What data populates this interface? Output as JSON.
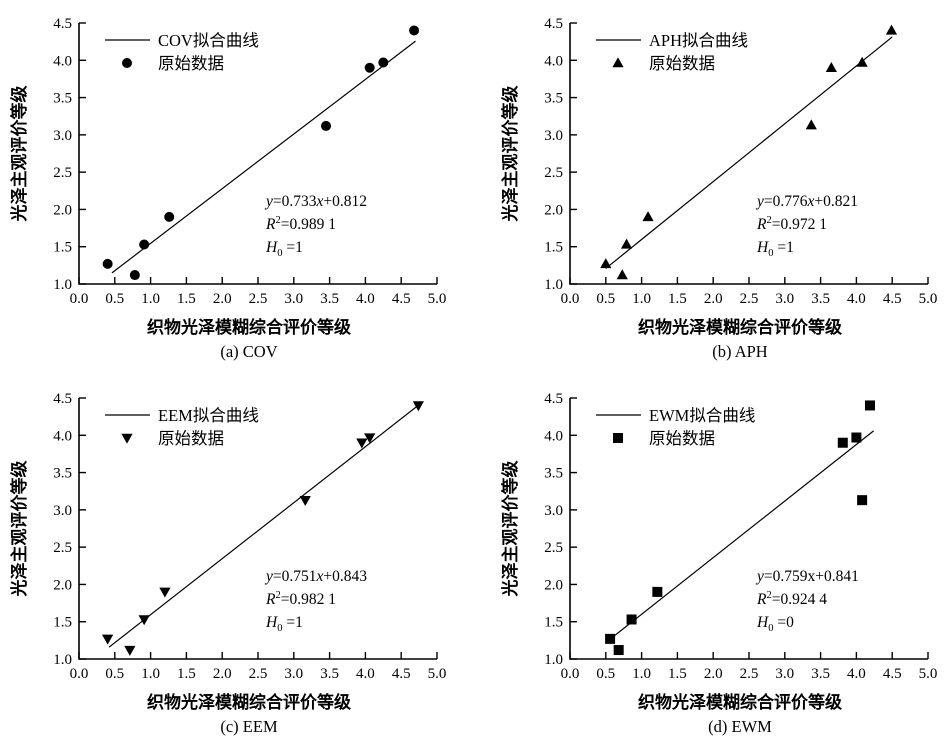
{
  "figure": {
    "background": "#ffffff",
    "ink_color": "#000000"
  },
  "chart_data": [
    {
      "id": "a",
      "type": "scatter",
      "caption": "(a) COV",
      "xlabel": "织物光泽模糊综合评价等级",
      "ylabel": "光泽主观评价等级",
      "xlim": [
        0.0,
        5.0
      ],
      "ylim": [
        1.0,
        4.5
      ],
      "xticks": [
        "0.0",
        "0.5",
        "1.0",
        "1.5",
        "2.0",
        "2.5",
        "3.0",
        "3.5",
        "4.0",
        "4.5",
        "5.0"
      ],
      "yticks": [
        "1.0",
        "1.5",
        "2.0",
        "2.5",
        "3.0",
        "3.5",
        "4.0",
        "4.5"
      ],
      "grid": false,
      "legend": {
        "position": "top-left",
        "line_label": "COV拟合曲线",
        "marker_label": "原始数据"
      },
      "marker": "circle",
      "fit_line": {
        "slope": 0.733,
        "intercept": 0.812,
        "x_start": 0.46,
        "x_end": 4.7
      },
      "equation": {
        "lhs": "y",
        "mid": "=0.733",
        "xvar": "x",
        "x_italic": true,
        "rhs": "+0.812",
        "r2_base": "R",
        "r2_sup": "2",
        "r2_value": "=0.989 1",
        "h_base": "H",
        "h_sub": "0",
        "h_value": " =1"
      },
      "points": [
        [
          0.4,
          1.27
        ],
        [
          0.78,
          1.12
        ],
        [
          0.91,
          1.53
        ],
        [
          1.26,
          1.9
        ],
        [
          3.45,
          3.12
        ],
        [
          4.06,
          3.9
        ],
        [
          4.25,
          3.97
        ],
        [
          4.68,
          4.4
        ]
      ]
    },
    {
      "id": "b",
      "type": "scatter",
      "caption": "(b) APH",
      "xlabel": "织物光泽模糊综合评价等级",
      "ylabel": "光泽主观评价等级",
      "xlim": [
        0.0,
        5.0
      ],
      "ylim": [
        1.0,
        4.5
      ],
      "xticks": [
        "0.0",
        "0.5",
        "1.0",
        "1.5",
        "2.0",
        "2.5",
        "3.0",
        "3.5",
        "4.0",
        "4.5",
        "5.0"
      ],
      "yticks": [
        "1.0",
        "1.5",
        "2.0",
        "2.5",
        "3.0",
        "3.5",
        "4.0",
        "4.5"
      ],
      "grid": false,
      "legend": {
        "position": "top-left",
        "line_label": "APH拟合曲线",
        "marker_label": "原始数据"
      },
      "marker": "triangle-up",
      "fit_line": {
        "slope": 0.776,
        "intercept": 0.821,
        "x_start": 0.5,
        "x_end": 4.5
      },
      "equation": {
        "lhs": "y",
        "mid": "=0.776",
        "xvar": "x",
        "x_italic": true,
        "rhs": "+0.821",
        "r2_base": "R",
        "r2_sup": "2",
        "r2_value": "=0.972 1",
        "h_base": "H",
        "h_sub": "0",
        "h_value": " =1"
      },
      "points": [
        [
          0.5,
          1.27
        ],
        [
          0.73,
          1.12
        ],
        [
          0.79,
          1.53
        ],
        [
          1.09,
          1.9
        ],
        [
          3.37,
          3.13
        ],
        [
          3.65,
          3.9
        ],
        [
          4.08,
          3.97
        ],
        [
          4.49,
          4.4
        ]
      ]
    },
    {
      "id": "c",
      "type": "scatter",
      "caption": "(c) EEM",
      "xlabel": "织物光泽模糊综合评价等级",
      "ylabel": "光泽主观评价等级",
      "xlim": [
        0.0,
        5.0
      ],
      "ylim": [
        1.0,
        4.5
      ],
      "xticks": [
        "0.0",
        "0.5",
        "1.0",
        "1.5",
        "2.0",
        "2.5",
        "3.0",
        "3.5",
        "4.0",
        "4.5",
        "5.0"
      ],
      "yticks": [
        "1.0",
        "1.5",
        "2.0",
        "2.5",
        "3.0",
        "3.5",
        "4.0",
        "4.5"
      ],
      "grid": false,
      "legend": {
        "position": "top-left",
        "line_label": "EEM拟合曲线",
        "marker_label": "原始数据"
      },
      "marker": "triangle-down",
      "fit_line": {
        "slope": 0.751,
        "intercept": 0.843,
        "x_start": 0.42,
        "x_end": 4.76
      },
      "equation": {
        "lhs": "y",
        "mid": "=0.751",
        "xvar": "x",
        "x_italic": true,
        "rhs": "+0.843",
        "r2_base": "R",
        "r2_sup": "2",
        "r2_value": "=0.982 1",
        "h_base": "H",
        "h_sub": "0",
        "h_value": " =1"
      },
      "points": [
        [
          0.4,
          1.27
        ],
        [
          0.71,
          1.12
        ],
        [
          0.91,
          1.53
        ],
        [
          1.2,
          1.9
        ],
        [
          3.16,
          3.13
        ],
        [
          3.95,
          3.9
        ],
        [
          4.06,
          3.97
        ],
        [
          4.74,
          4.4
        ]
      ]
    },
    {
      "id": "d",
      "type": "scatter",
      "caption": "(d) EWM",
      "xlabel": "织物光泽模糊综合评价等级",
      "ylabel": "光泽主观评价等级",
      "xlim": [
        0.0,
        5.0
      ],
      "ylim": [
        1.0,
        4.5
      ],
      "xticks": [
        "0.0",
        "0.5",
        "1.0",
        "1.5",
        "2.0",
        "2.5",
        "3.0",
        "3.5",
        "4.0",
        "4.5",
        "5.0"
      ],
      "yticks": [
        "1.0",
        "1.5",
        "2.0",
        "2.5",
        "3.0",
        "3.5",
        "4.0",
        "4.5"
      ],
      "grid": false,
      "legend": {
        "position": "top-left",
        "line_label": "EWM拟合曲线",
        "marker_label": "原始数据"
      },
      "marker": "square",
      "fit_line": {
        "slope": 0.759,
        "intercept": 0.841,
        "x_start": 0.54,
        "x_end": 4.24
      },
      "equation": {
        "lhs": "y",
        "mid": "=0.759",
        "xvar": "x",
        "x_italic": false,
        "rhs": "+0.841",
        "r2_base": "R",
        "r2_sup": "2",
        "r2_value": "=0.924 4",
        "h_base": "H",
        "h_sub": "0",
        "h_value": " =0"
      },
      "points": [
        [
          0.56,
          1.27
        ],
        [
          0.68,
          1.12
        ],
        [
          0.86,
          1.53
        ],
        [
          1.22,
          1.9
        ],
        [
          3.81,
          3.9
        ],
        [
          4.0,
          3.97
        ],
        [
          4.08,
          3.13
        ],
        [
          4.19,
          4.4
        ]
      ]
    }
  ]
}
